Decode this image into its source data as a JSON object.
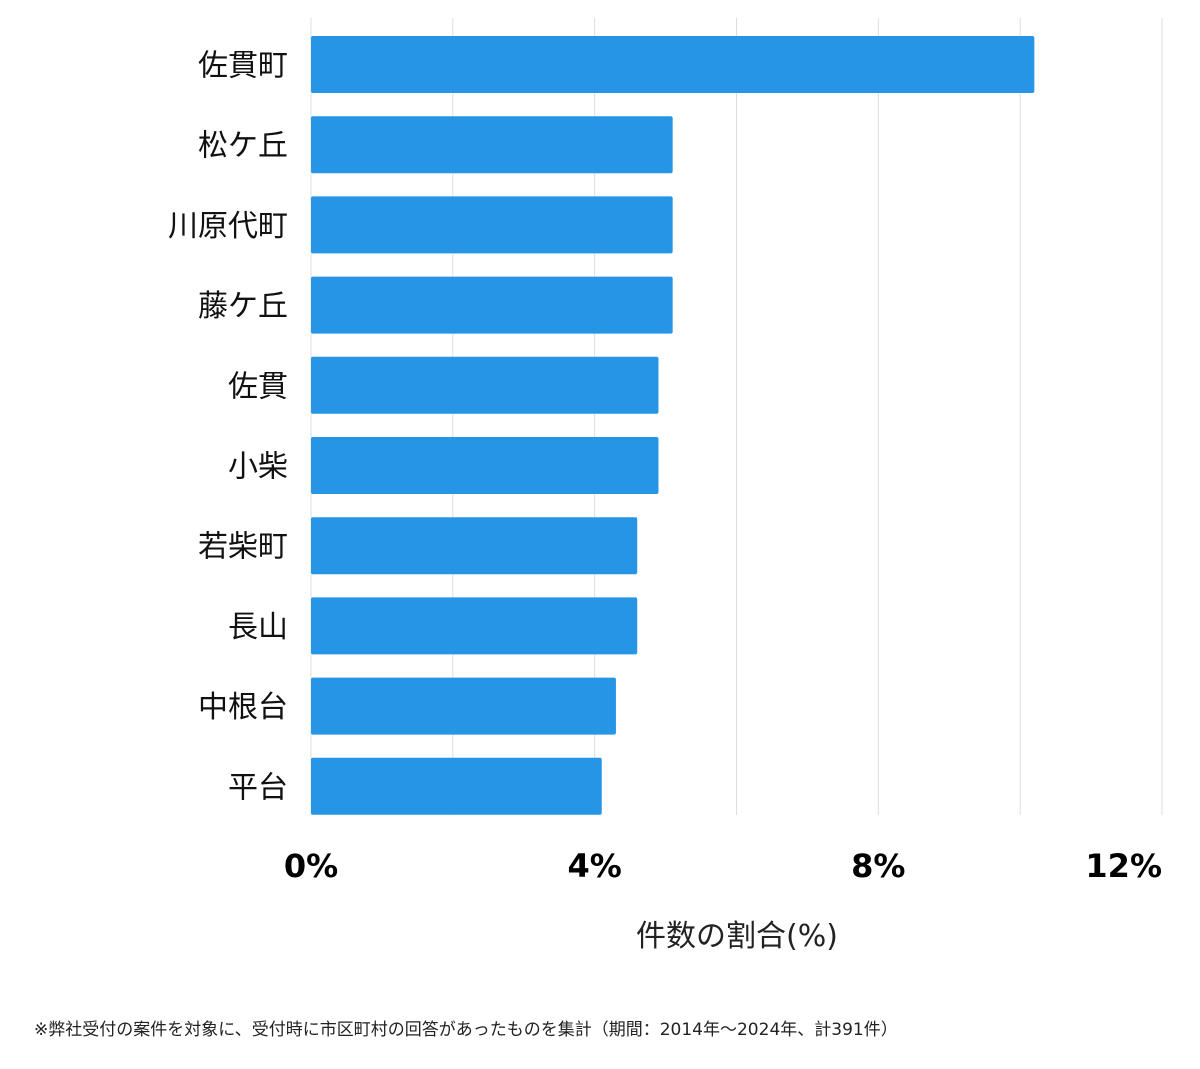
{
  "chart_data": {
    "type": "bar",
    "orientation": "horizontal",
    "categories": [
      "佐貫町",
      "松ケ丘",
      "川原代町",
      "藤ケ丘",
      "佐貫",
      "小柴",
      "若柴町",
      "長山",
      "中根台",
      "平台"
    ],
    "values": [
      10.2,
      5.1,
      5.1,
      5.1,
      4.9,
      4.9,
      4.6,
      4.6,
      4.3,
      4.1
    ],
    "xlim": [
      0,
      12
    ],
    "xticks": [
      0,
      4,
      8,
      12
    ],
    "xtick_labels": [
      "0%",
      "4%",
      "8%",
      "12%"
    ],
    "xlabel": "件数の割合(%)",
    "grid": true,
    "bar_color": "#2795e6",
    "grid_color": "#dddddd"
  },
  "footnote": "※弊社受付の案件を対象に、受付時に市区町村の回答があったものを集計（期間：2014年〜2024年、計391件）"
}
